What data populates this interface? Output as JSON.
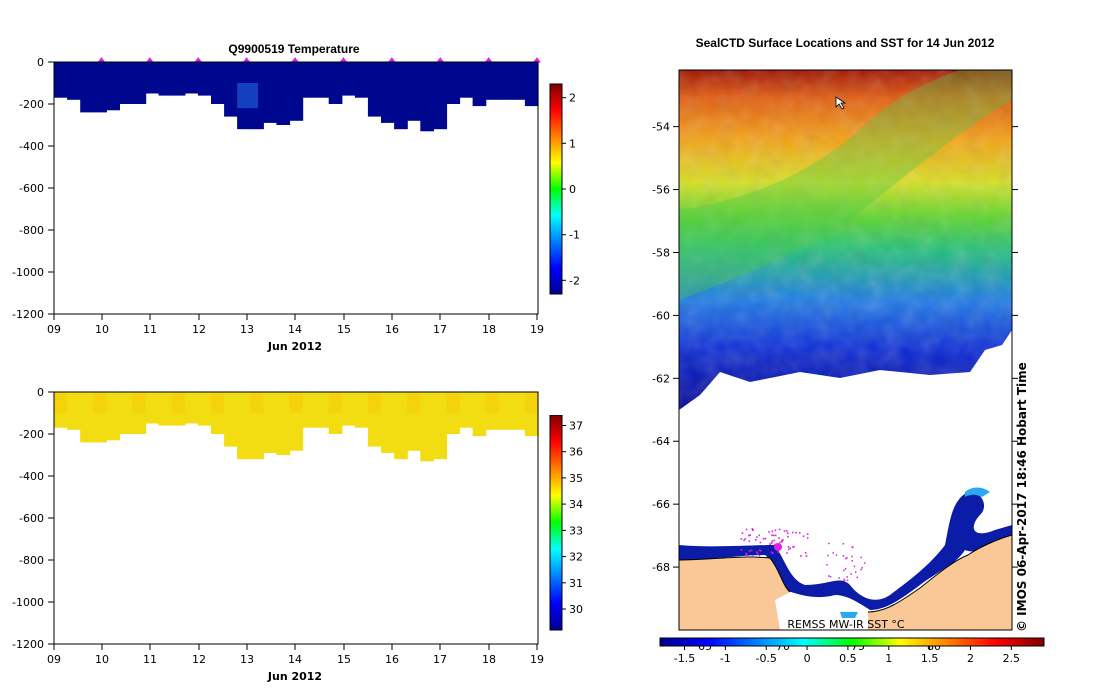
{
  "chart_data": [
    {
      "type": "heatmap",
      "title": "Q9900519  Temperature",
      "xlabel": "Jun 2012",
      "ylabel": "",
      "x_ticks": [
        "09",
        "10",
        "11",
        "12",
        "13",
        "14",
        "15",
        "16",
        "17",
        "18",
        "19"
      ],
      "y_ticks": [
        "0",
        "-200",
        "-400",
        "-600",
        "-800",
        "-1000",
        "-1200"
      ],
      "ylim": [
        -1200,
        0
      ],
      "xlim": [
        9,
        19
      ],
      "profile_times": [
        9.98,
        10.98,
        11.98,
        12.98,
        13.98,
        14.98,
        15.98,
        16.98,
        17.98,
        18.98
      ],
      "profile_bottom_depths": [
        -170,
        -180,
        -240,
        -240,
        -230,
        -200,
        -200,
        -150,
        -160,
        -160,
        -150,
        -160,
        -200,
        -260,
        -320,
        -320,
        -290,
        -300,
        -280,
        -170,
        -170,
        -200,
        -160,
        -170,
        -260,
        -290,
        -320,
        -280,
        -330,
        -320,
        -200,
        -170,
        -210,
        -180,
        -180,
        -180,
        -210
      ],
      "values_approx": "near -1.8 to -2.0 throughout, slightly warmer (~-1.5) around 13 Jun at 200-300 m",
      "colorbar": {
        "ticks": [
          "-2",
          "-1",
          "0",
          "1",
          "2"
        ],
        "min": -2.3,
        "max": 2.3
      }
    },
    {
      "type": "heatmap",
      "title": "",
      "xlabel": "Jun 2012",
      "ylabel": "",
      "x_ticks": [
        "09",
        "10",
        "11",
        "12",
        "13",
        "14",
        "15",
        "16",
        "17",
        "18",
        "19"
      ],
      "y_ticks": [
        "0",
        "-200",
        "-400",
        "-600",
        "-800",
        "-1000",
        "-1200"
      ],
      "ylim": [
        -1200,
        0
      ],
      "xlim": [
        9,
        19
      ],
      "profile_bottom_depths": [
        -170,
        -180,
        -240,
        -240,
        -230,
        -200,
        -200,
        -150,
        -160,
        -160,
        -150,
        -160,
        -200,
        -260,
        -320,
        -320,
        -290,
        -300,
        -280,
        -170,
        -170,
        -200,
        -160,
        -170,
        -260,
        -290,
        -320,
        -280,
        -330,
        -320,
        -200,
        -170,
        -210,
        -180,
        -180,
        -180,
        -210
      ],
      "values_approx": "salinity ~34.3-34.6 throughout",
      "colorbar": {
        "ticks": [
          "30",
          "31",
          "32",
          "33",
          "34",
          "35",
          "36",
          "37"
        ],
        "min": 29.2,
        "max": 37.4
      }
    },
    {
      "type": "heatmap",
      "title": "SealCTD Surface Locations and SST for 14 Jun 2012",
      "y_ticks": [
        "-54",
        "-56",
        "-58",
        "-60",
        "-62",
        "-64",
        "-66",
        "-68"
      ],
      "ylim": [
        -70,
        -52.2
      ],
      "colorbar": {
        "ticks": [
          "-1.5",
          "-1",
          "-0.5",
          "0",
          "0.5",
          "1",
          "1.5",
          "2",
          "2.5"
        ],
        "min": -1.8,
        "max": 2.9
      },
      "longitude_ticks": [
        "65",
        "70",
        "75",
        "80"
      ],
      "source_label": "REMSS MW-IR SST °C",
      "credit": "© IMOS 06-Apr-2017 18:46 Hobart Time"
    }
  ]
}
